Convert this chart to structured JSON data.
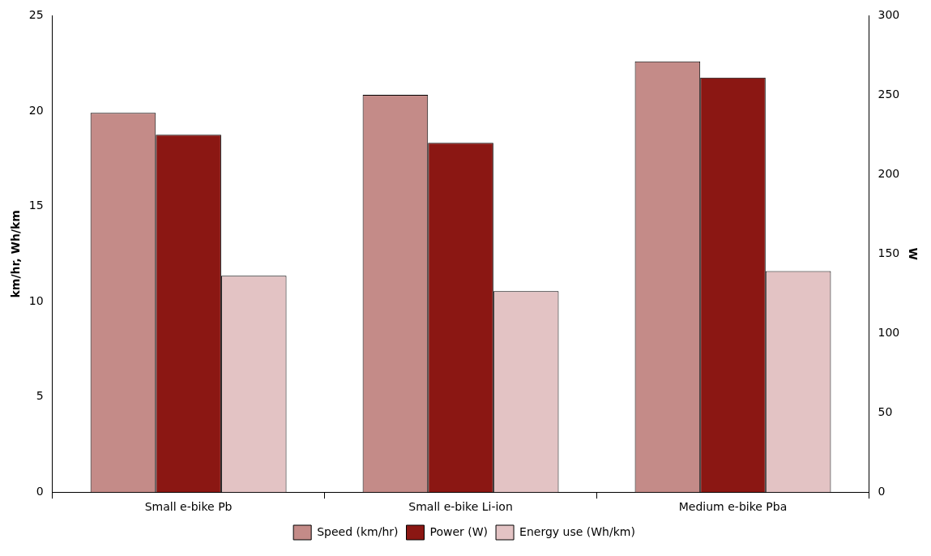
{
  "chart_data": {
    "type": "bar",
    "ylabel": "km/hr, Wh/km",
    "y2label": "W",
    "categories": [
      "Small e-bike Pb",
      "Small e-bike Li-ion",
      "Medium e-bike Pba"
    ],
    "series": [
      {
        "name": "Speed (km/hr)",
        "color": "#c48b88",
        "values": [
          19.9,
          20.85,
          22.6
        ]
      },
      {
        "name": "Power (W)",
        "color": "#8b1713",
        "values": [
          225,
          220,
          261
        ],
        "axis": "y2"
      },
      {
        "name": "Energy use (Wh/km)",
        "color": "#e3c3c4",
        "values": [
          11.35,
          10.55,
          11.6
        ]
      }
    ],
    "ylim": [
      0,
      25
    ],
    "yticks": [
      0,
      5,
      10,
      15,
      20,
      25
    ],
    "y2lim": [
      0,
      300
    ],
    "y2ticks": [
      0,
      50,
      100,
      150,
      200,
      250,
      300
    ],
    "grid": false,
    "legend": "bottom"
  }
}
